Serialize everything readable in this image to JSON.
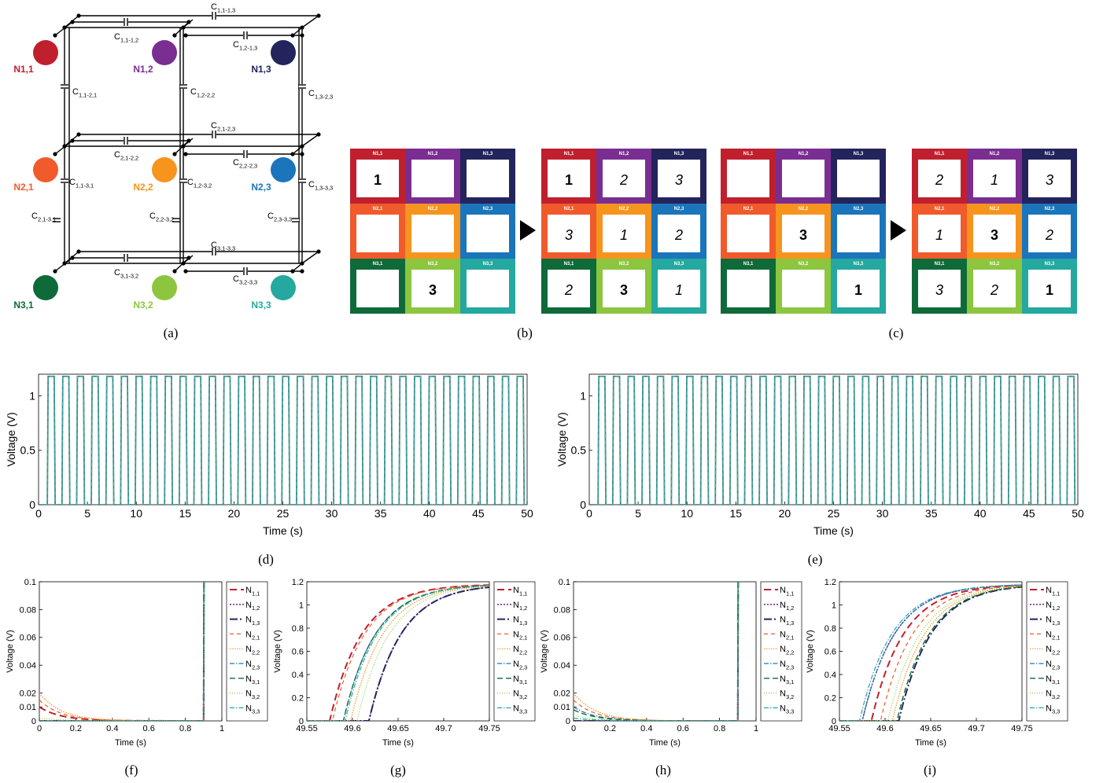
{
  "captions": {
    "a": "(a)",
    "b": "(b)",
    "c": "(c)",
    "d": "(d)",
    "e": "(e)",
    "f": "(f)",
    "g": "(g)",
    "h": "(h)",
    "i": "(i)"
  },
  "network": {
    "nodes": [
      {
        "id": "n11",
        "label": "N1,1",
        "color": "#c0202e"
      },
      {
        "id": "n12",
        "label": "N1,2",
        "color": "#7a2e91"
      },
      {
        "id": "n13",
        "label": "N1,3",
        "color": "#23245c"
      },
      {
        "id": "n21",
        "label": "N2,1",
        "color": "#f15a2b"
      },
      {
        "id": "n22",
        "label": "N2,2",
        "color": "#f7941d"
      },
      {
        "id": "n23",
        "label": "N2,3",
        "color": "#1b75bb"
      },
      {
        "id": "n31",
        "label": "N3,1",
        "color": "#0f6a3a"
      },
      {
        "id": "n32",
        "label": "N3,2",
        "color": "#8cc63f"
      },
      {
        "id": "n33",
        "label": "N3,3",
        "color": "#24a8a0"
      }
    ],
    "capacitors": [
      {
        "id": "c11_13",
        "name": "C",
        "sub": "1,1-1,3"
      },
      {
        "id": "c11_12",
        "name": "C",
        "sub": "1,1-1,2"
      },
      {
        "id": "c12_13",
        "name": "C",
        "sub": "1,2-1,3"
      },
      {
        "id": "c11_21",
        "name": "C",
        "sub": "1,1-2,1"
      },
      {
        "id": "c12_22",
        "name": "C",
        "sub": "1,2-2,2"
      },
      {
        "id": "c13_23",
        "name": "C",
        "sub": "1,3-2,3"
      },
      {
        "id": "c21_23",
        "name": "C",
        "sub": "2,1-2,3"
      },
      {
        "id": "c21_22",
        "name": "C",
        "sub": "2,1-2,2"
      },
      {
        "id": "c22_23",
        "name": "C",
        "sub": "2,2-2,3"
      },
      {
        "id": "c11_31",
        "name": "C",
        "sub": "1,1-3,1"
      },
      {
        "id": "c12_32",
        "name": "C",
        "sub": "1,2-3,2"
      },
      {
        "id": "c13_33",
        "name": "C",
        "sub": "1,3-3,3"
      },
      {
        "id": "c21_31",
        "name": "C",
        "sub": "2,1-3,1"
      },
      {
        "id": "c22_32",
        "name": "C",
        "sub": "2,2-3,2"
      },
      {
        "id": "c23_33",
        "name": "C",
        "sub": "2,3-3,3"
      },
      {
        "id": "c31_33",
        "name": "C",
        "sub": "3,1-3,3"
      },
      {
        "id": "c31_32",
        "name": "C",
        "sub": "3,1-3,2"
      },
      {
        "id": "c32_33",
        "name": "C",
        "sub": "3,2-3,3"
      }
    ]
  },
  "grids": {
    "labels": [
      "N1,1",
      "N1,2",
      "N1,3",
      "N2,1",
      "N2,2",
      "N2,3",
      "N3,1",
      "N3,2",
      "N3,3"
    ],
    "colors": [
      "#c0202e",
      "#7a2e91",
      "#23245c",
      "#f15a2b",
      "#f7941d",
      "#1b75bb",
      "#0f6a3a",
      "#8cc63f",
      "#24a8a0"
    ],
    "b_before": [
      {
        "v": "1",
        "b": true
      },
      {
        "v": ""
      },
      {
        "v": ""
      },
      {
        "v": ""
      },
      {
        "v": ""
      },
      {
        "v": ""
      },
      {
        "v": ""
      },
      {
        "v": "3",
        "b": true
      },
      {
        "v": ""
      }
    ],
    "b_after": [
      {
        "v": "1",
        "b": true
      },
      {
        "v": "2"
      },
      {
        "v": "3"
      },
      {
        "v": "3"
      },
      {
        "v": "1"
      },
      {
        "v": "2"
      },
      {
        "v": "2"
      },
      {
        "v": "3",
        "b": true
      },
      {
        "v": "1"
      }
    ],
    "c_before": [
      {
        "v": ""
      },
      {
        "v": ""
      },
      {
        "v": ""
      },
      {
        "v": ""
      },
      {
        "v": "3",
        "b": true
      },
      {
        "v": ""
      },
      {
        "v": ""
      },
      {
        "v": ""
      },
      {
        "v": "1",
        "b": true
      }
    ],
    "c_after": [
      {
        "v": "2"
      },
      {
        "v": "1"
      },
      {
        "v": "3"
      },
      {
        "v": "1"
      },
      {
        "v": "3",
        "b": true
      },
      {
        "v": "2"
      },
      {
        "v": "3"
      },
      {
        "v": "2"
      },
      {
        "v": "1",
        "b": true
      }
    ]
  },
  "chart_data": [
    {
      "panel": "d",
      "type": "line",
      "xlabel": "Time (s)",
      "ylabel": "Voltage (V)",
      "xlim": [
        0,
        50
      ],
      "ylim": [
        0,
        1.2
      ],
      "xticks": [
        "0",
        "5",
        "10",
        "15",
        "20",
        "25",
        "30",
        "35",
        "40",
        "45",
        "50"
      ],
      "yticks": [
        "0",
        "0.5",
        "1"
      ],
      "pulse_high": 1.18,
      "period": 1.5,
      "first_rise": 0.9
    },
    {
      "panel": "e",
      "type": "line",
      "xlabel": "Time (s)",
      "ylabel": "Voltage (V)",
      "xlim": [
        0,
        50
      ],
      "ylim": [
        0,
        1.2
      ],
      "xticks": [
        "0",
        "5",
        "10",
        "15",
        "20",
        "25",
        "30",
        "35",
        "40",
        "45",
        "50"
      ],
      "yticks": [
        "0",
        "0.5",
        "1"
      ],
      "pulse_high": 1.18,
      "period": 1.5,
      "first_rise": 0.9
    },
    {
      "panel": "f",
      "type": "line",
      "xlabel": "Time (s)",
      "ylabel": "Voltage (V)",
      "xlim": [
        0,
        1
      ],
      "ylim": [
        0,
        0.1
      ],
      "xticks": [
        "0",
        "0.2",
        "0.4",
        "0.6",
        "0.8",
        "1"
      ],
      "yticks": [
        "0",
        "0.01",
        "0.02",
        "0.04",
        "0.06",
        "0.08",
        "0.1"
      ],
      "rise_time": 0.9,
      "series_init": [
        0.01,
        0,
        0,
        0.015,
        0.02,
        0,
        0,
        0.002,
        0
      ]
    },
    {
      "panel": "g",
      "type": "line",
      "xlabel": "Time (s)",
      "ylabel": "Voltage (V)",
      "xlim": [
        49.55,
        49.75
      ],
      "ylim": [
        0,
        1.2
      ],
      "xticks": [
        "49.55",
        "49.6",
        "49.65",
        "49.7",
        "49.75"
      ],
      "yticks": [
        "0",
        "0.2",
        "0.4",
        "0.6",
        "0.8",
        "1",
        "1.2"
      ],
      "rise_start": [
        49.575,
        49.618,
        49.618,
        49.578,
        49.598,
        49.59,
        49.59,
        49.605,
        49.592
      ]
    },
    {
      "panel": "h",
      "type": "line",
      "xlabel": "Time (s)",
      "ylabel": "Voltage (V)",
      "xlim": [
        0,
        1
      ],
      "ylim": [
        0,
        0.1
      ],
      "xticks": [
        "0",
        "0.2",
        "0.4",
        "0.6",
        "0.8",
        "1"
      ],
      "yticks": [
        "0",
        "0.01",
        "0.02",
        "0.04",
        "0.06",
        "0.08",
        "0.1"
      ],
      "rise_time": 0.9,
      "series_init": [
        0,
        0,
        0,
        0.015,
        0.02,
        0.01,
        0.008,
        0.004,
        0.002
      ]
    },
    {
      "panel": "i",
      "type": "line",
      "xlabel": "Time (s)",
      "ylabel": "Voltage (V)",
      "xlim": [
        49.55,
        49.75
      ],
      "ylim": [
        0,
        1.2
      ],
      "xticks": [
        "49.55",
        "49.6",
        "49.65",
        "49.7",
        "49.75"
      ],
      "yticks": [
        "0",
        "0.2",
        "0.4",
        "0.6",
        "0.8",
        "1",
        "1.2"
      ],
      "rise_start": [
        49.585,
        49.575,
        49.615,
        49.595,
        49.608,
        49.575,
        49.613,
        49.603,
        49.572
      ]
    }
  ],
  "legend": [
    {
      "base": "N",
      "sub": "1,1",
      "color": "#c0202e",
      "dash": "9,5",
      "w": 2
    },
    {
      "base": "N",
      "sub": "1,2",
      "color": "#7a2e91",
      "dash": "2,2",
      "w": 1.6
    },
    {
      "base": "N",
      "sub": "1,3",
      "color": "#23245c",
      "dash": "10,3,2,3",
      "w": 2
    },
    {
      "base": "N",
      "sub": "2,1",
      "color": "#f15a2b",
      "dash": "5,4",
      "w": 1.2
    },
    {
      "base": "N",
      "sub": "2,2",
      "color": "#f7941d",
      "dash": "1.5,1.5",
      "w": 1.2
    },
    {
      "base": "N",
      "sub": "2,3",
      "color": "#1b75bb",
      "dash": "6,2,1.5,2",
      "w": 1.2
    },
    {
      "base": "N",
      "sub": "3,1",
      "color": "#0f6a3a",
      "dash": "7,4",
      "w": 1.4
    },
    {
      "base": "N",
      "sub": "3,2",
      "color": "#8cc63f",
      "dash": "1,2",
      "w": 1.2
    },
    {
      "base": "N",
      "sub": "3,3",
      "color": "#24a8a0",
      "dash": "6,2,1.5,2",
      "w": 1.2
    }
  ]
}
